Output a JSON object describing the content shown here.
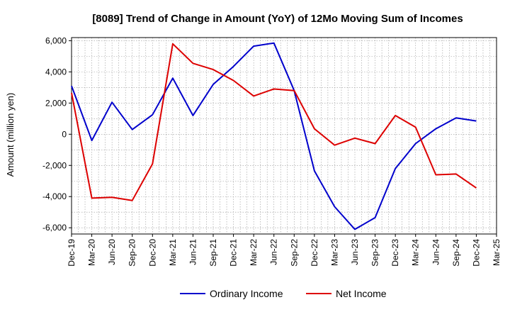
{
  "chart_data": {
    "type": "line",
    "title": "[8089]  Trend of Change in Amount (YoY) of 12Mo Moving Sum of Incomes",
    "ylabel": "Amount (million yen)",
    "xlabel": "",
    "ylim": [
      -6400,
      6200
    ],
    "yticks": [
      -6000,
      -4000,
      -2000,
      0,
      2000,
      4000,
      6000
    ],
    "ytick_labels": [
      "-6,000",
      "-4,000",
      "-2,000",
      "0",
      "2,000",
      "4,000",
      "6,000"
    ],
    "x_tick_labels": [
      "Dec-19",
      "Mar-20",
      "Jun-20",
      "Sep-20",
      "Dec-20",
      "Mar-21",
      "Jun-21",
      "Sep-21",
      "Dec-21",
      "Mar-22",
      "Jun-22",
      "Sep-22",
      "Dec-22",
      "Mar-23",
      "Jun-23",
      "Sep-23",
      "Dec-23",
      "Mar-24",
      "Jun-24",
      "Sep-24",
      "Dec-24",
      "Mar-25"
    ],
    "grid": true,
    "legend_position": "bottom-center",
    "series": [
      {
        "name": "Ordinary Income",
        "color": "#0000cc",
        "values": [
          3100,
          -400,
          2050,
          300,
          1250,
          3600,
          1200,
          3200,
          4350,
          5650,
          5850,
          2800,
          -2350,
          -4650,
          -6100,
          -5350,
          -2200,
          -600,
          350,
          1050,
          850
        ]
      },
      {
        "name": "Net Income",
        "color": "#dd0000",
        "values": [
          2650,
          -4100,
          -4050,
          -4250,
          -1900,
          5800,
          4550,
          4150,
          3450,
          2450,
          2900,
          2800,
          350,
          -700,
          -250,
          -600,
          1200,
          450,
          -2600,
          -2550,
          -3450
        ]
      }
    ]
  }
}
